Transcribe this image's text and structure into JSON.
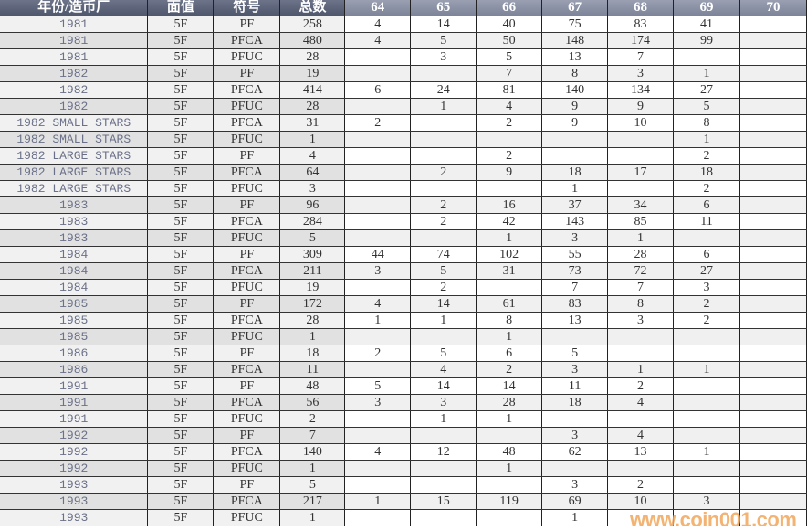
{
  "headers": [
    "年份/造币厂",
    "面值",
    "符号",
    "总数",
    "64",
    "65",
    "66",
    "67",
    "68",
    "69",
    "70"
  ],
  "rows": [
    [
      "1981",
      "5F",
      "PF",
      "258",
      "4",
      "14",
      "40",
      "75",
      "83",
      "41",
      ""
    ],
    [
      "1981",
      "5F",
      "PFCA",
      "480",
      "4",
      "5",
      "50",
      "148",
      "174",
      "99",
      ""
    ],
    [
      "1981",
      "5F",
      "PFUC",
      "28",
      "",
      "3",
      "5",
      "13",
      "7",
      "",
      ""
    ],
    [
      "1982",
      "5F",
      "PF",
      "19",
      "",
      "",
      "7",
      "8",
      "3",
      "1",
      ""
    ],
    [
      "1982",
      "5F",
      "PFCA",
      "414",
      "6",
      "24",
      "81",
      "140",
      "134",
      "27",
      ""
    ],
    [
      "1982",
      "5F",
      "PFUC",
      "28",
      "",
      "1",
      "4",
      "9",
      "9",
      "5",
      ""
    ],
    [
      "1982 SMALL STARS",
      "5F",
      "PFCA",
      "31",
      "2",
      "",
      "2",
      "9",
      "10",
      "8",
      ""
    ],
    [
      "1982 SMALL STARS",
      "5F",
      "PFUC",
      "1",
      "",
      "",
      "",
      "",
      "",
      "1",
      ""
    ],
    [
      "1982 LARGE STARS",
      "5F",
      "PF",
      "4",
      "",
      "",
      "2",
      "",
      "",
      "2",
      ""
    ],
    [
      "1982 LARGE STARS",
      "5F",
      "PFCA",
      "64",
      "",
      "2",
      "9",
      "18",
      "17",
      "18",
      ""
    ],
    [
      "1982 LARGE STARS",
      "5F",
      "PFUC",
      "3",
      "",
      "",
      "",
      "1",
      "",
      "2",
      ""
    ],
    [
      "1983",
      "5F",
      "PF",
      "96",
      "",
      "2",
      "16",
      "37",
      "34",
      "6",
      ""
    ],
    [
      "1983",
      "5F",
      "PFCA",
      "284",
      "",
      "2",
      "42",
      "143",
      "85",
      "11",
      ""
    ],
    [
      "1983",
      "5F",
      "PFUC",
      "5",
      "",
      "",
      "1",
      "3",
      "1",
      "",
      ""
    ],
    [
      "1984",
      "5F",
      "PF",
      "309",
      "44",
      "74",
      "102",
      "55",
      "28",
      "6",
      ""
    ],
    [
      "1984",
      "5F",
      "PFCA",
      "211",
      "3",
      "5",
      "31",
      "73",
      "72",
      "27",
      ""
    ],
    [
      "1984",
      "5F",
      "PFUC",
      "19",
      "",
      "2",
      "",
      "7",
      "7",
      "3",
      ""
    ],
    [
      "1985",
      "5F",
      "PF",
      "172",
      "4",
      "14",
      "61",
      "83",
      "8",
      "2",
      ""
    ],
    [
      "1985",
      "5F",
      "PFCA",
      "28",
      "1",
      "1",
      "8",
      "13",
      "3",
      "2",
      ""
    ],
    [
      "1985",
      "5F",
      "PFUC",
      "1",
      "",
      "",
      "1",
      "",
      "",
      "",
      ""
    ],
    [
      "1986",
      "5F",
      "PF",
      "18",
      "2",
      "5",
      "6",
      "5",
      "",
      "",
      ""
    ],
    [
      "1986",
      "5F",
      "PFCA",
      "11",
      "",
      "4",
      "2",
      "3",
      "1",
      "1",
      ""
    ],
    [
      "1991",
      "5F",
      "PF",
      "48",
      "5",
      "14",
      "14",
      "11",
      "2",
      "",
      ""
    ],
    [
      "1991",
      "5F",
      "PFCA",
      "56",
      "3",
      "3",
      "28",
      "18",
      "4",
      "",
      ""
    ],
    [
      "1991",
      "5F",
      "PFUC",
      "2",
      "",
      "1",
      "1",
      "",
      "",
      "",
      ""
    ],
    [
      "1992",
      "5F",
      "PF",
      "7",
      "",
      "",
      "",
      "3",
      "4",
      "",
      ""
    ],
    [
      "1992",
      "5F",
      "PFCA",
      "140",
      "4",
      "12",
      "48",
      "62",
      "13",
      "1",
      ""
    ],
    [
      "1992",
      "5F",
      "PFUC",
      "1",
      "",
      "",
      "1",
      "",
      "",
      "",
      ""
    ],
    [
      "1993",
      "5F",
      "PF",
      "5",
      "",
      "",
      "",
      "3",
      "2",
      "",
      ""
    ],
    [
      "1993",
      "5F",
      "PFCA",
      "217",
      "1",
      "15",
      "119",
      "69",
      "10",
      "3",
      ""
    ],
    [
      "1993",
      "5F",
      "PFUC",
      "1",
      "",
      "",
      "",
      "1",
      "",
      "",
      ""
    ]
  ],
  "watermark": "www.coin001.com",
  "colors": {
    "header_dark": "#5a6279",
    "header_light": "#8c92a6",
    "year_text": "#6a7088",
    "watermark": "#f2a65a"
  }
}
